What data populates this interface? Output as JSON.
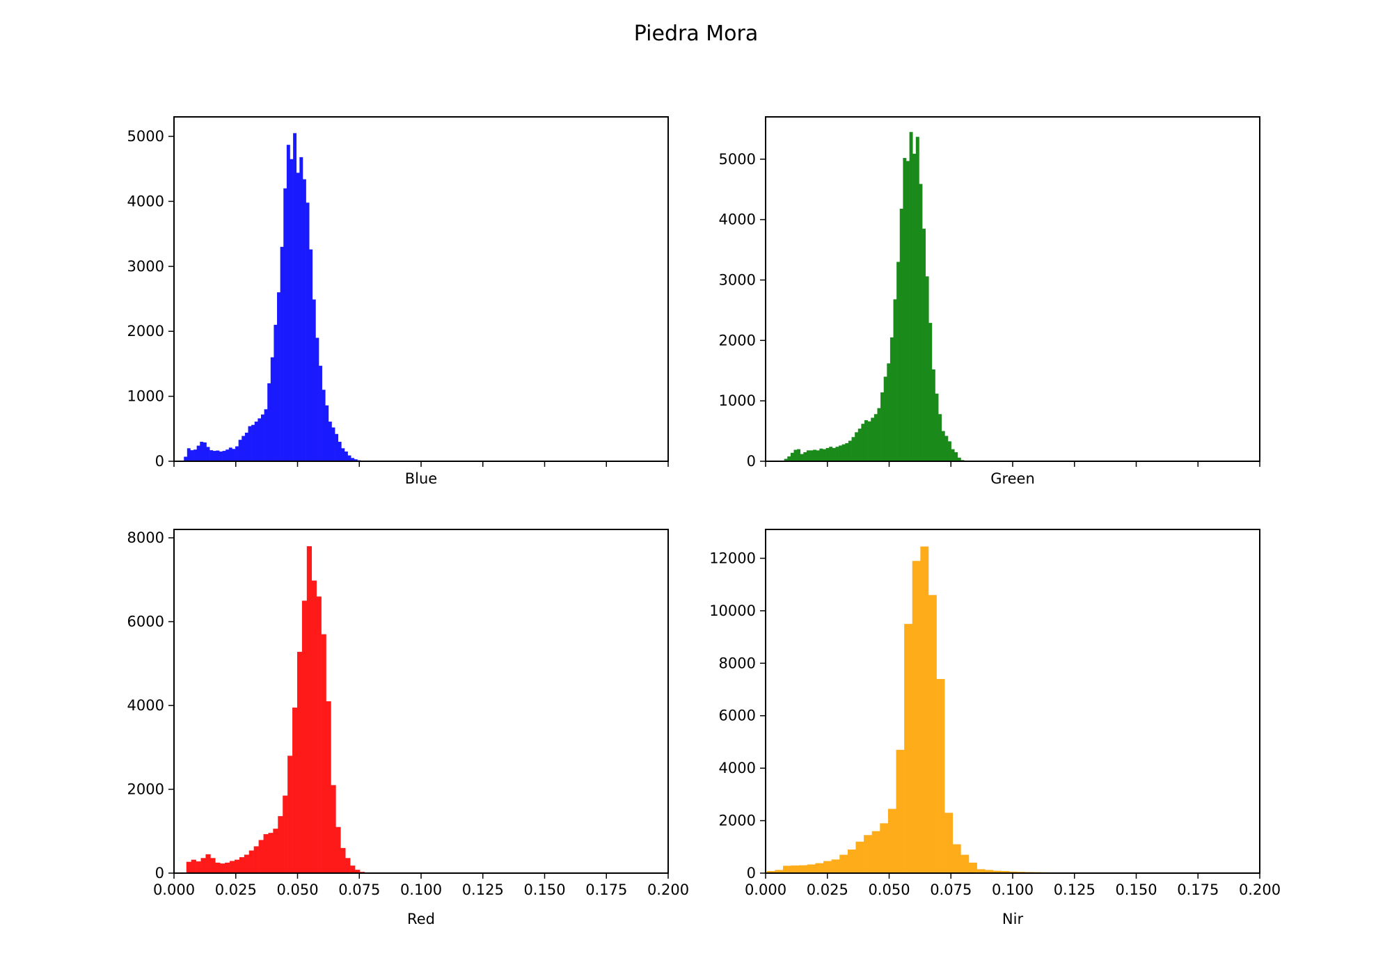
{
  "figure": {
    "title": "Piedra Mora"
  },
  "chart_data": [
    {
      "type": "bar",
      "panel": "top-left",
      "xlabel": "Blue",
      "ylabel": "",
      "xlim": [
        0,
        0.2
      ],
      "ylim": [
        0,
        5300
      ],
      "xticks": [
        0,
        0.025,
        0.05,
        0.075,
        0.1,
        0.125,
        0.15,
        0.175,
        0.2
      ],
      "show_xtick_labels": false,
      "yticks": [
        0,
        1000,
        2000,
        3000,
        4000,
        5000
      ],
      "color": "#1a1aff",
      "bin_start": 0.004,
      "bin_width": 0.0013,
      "values": [
        70,
        200,
        170,
        180,
        240,
        300,
        290,
        220,
        170,
        160,
        165,
        150,
        160,
        180,
        210,
        190,
        230,
        330,
        390,
        440,
        540,
        560,
        610,
        660,
        720,
        800,
        1200,
        1600,
        2100,
        2600,
        3300,
        4200,
        4870,
        4650,
        5050,
        4440,
        4680,
        4340,
        3980,
        3260,
        2490,
        1900,
        1470,
        1100,
        860,
        610,
        520,
        420,
        300,
        200,
        150,
        90,
        50,
        30,
        15,
        8,
        4,
        2
      ]
    },
    {
      "type": "bar",
      "panel": "top-right",
      "xlabel": "Green",
      "ylabel": "",
      "xlim": [
        0,
        0.2
      ],
      "ylim": [
        0,
        5700
      ],
      "xticks": [
        0,
        0.025,
        0.05,
        0.075,
        0.1,
        0.125,
        0.15,
        0.175,
        0.2
      ],
      "show_xtick_labels": false,
      "yticks": [
        0,
        1000,
        2000,
        3000,
        4000,
        5000
      ],
      "color": "#1a8a1a",
      "bin_start": 0.0075,
      "bin_width": 0.0013,
      "values": [
        40,
        80,
        140,
        190,
        200,
        120,
        150,
        180,
        180,
        190,
        180,
        210,
        200,
        220,
        240,
        220,
        240,
        260,
        280,
        300,
        340,
        400,
        480,
        540,
        620,
        680,
        660,
        720,
        780,
        880,
        1140,
        1400,
        1620,
        2050,
        2680,
        3300,
        4180,
        5020,
        4970,
        5450,
        5090,
        5370,
        4590,
        3850,
        3060,
        2290,
        1520,
        1120,
        780,
        500,
        420,
        330,
        200,
        150,
        60,
        20,
        8,
        3
      ]
    },
    {
      "type": "bar",
      "panel": "bottom-left",
      "xlabel": "Red",
      "ylabel": "",
      "xlim": [
        0,
        0.2
      ],
      "ylim": [
        0,
        8200
      ],
      "xticks": [
        0,
        0.025,
        0.05,
        0.075,
        0.1,
        0.125,
        0.15,
        0.175,
        0.2
      ],
      "xtick_labels": [
        "0.000",
        "0.025",
        "0.050",
        "0.075",
        "0.100",
        "0.125",
        "0.150",
        "0.175",
        "0.200"
      ],
      "show_xtick_labels": true,
      "yticks": [
        0,
        2000,
        4000,
        6000,
        8000
      ],
      "color": "#ff1a1a",
      "bin_start": 0.005,
      "bin_width": 0.00195,
      "values": [
        270,
        320,
        280,
        360,
        450,
        360,
        250,
        230,
        250,
        290,
        320,
        380,
        440,
        540,
        640,
        790,
        930,
        960,
        1060,
        1360,
        1850,
        2800,
        3950,
        5280,
        6500,
        7800,
        6980,
        6600,
        5700,
        4100,
        2100,
        1100,
        600,
        360,
        180,
        80,
        30,
        10,
        4
      ]
    },
    {
      "type": "bar",
      "panel": "bottom-right",
      "xlabel": "Nir",
      "ylabel": "",
      "xlim": [
        0,
        0.2
      ],
      "ylim": [
        0,
        13100
      ],
      "xticks": [
        0,
        0.025,
        0.05,
        0.075,
        0.1,
        0.125,
        0.15,
        0.175,
        0.2
      ],
      "xtick_labels": [
        "0.000",
        "0.025",
        "0.050",
        "0.075",
        "0.100",
        "0.125",
        "0.150",
        "0.175",
        "0.200"
      ],
      "show_xtick_labels": true,
      "yticks": [
        0,
        2000,
        4000,
        6000,
        8000,
        10000,
        12000
      ],
      "color": "#ffac1a",
      "bin_start": 0.0005,
      "bin_width": 0.00327,
      "values": [
        80,
        120,
        280,
        290,
        300,
        330,
        380,
        460,
        520,
        700,
        900,
        1200,
        1450,
        1600,
        1900,
        2450,
        4700,
        9500,
        11900,
        12450,
        10600,
        7400,
        2300,
        1100,
        700,
        400,
        150,
        120,
        90,
        80,
        60,
        50,
        40,
        35,
        30,
        25,
        20,
        20,
        15,
        15,
        12,
        10,
        10,
        8,
        8,
        6,
        5,
        5
      ]
    }
  ]
}
